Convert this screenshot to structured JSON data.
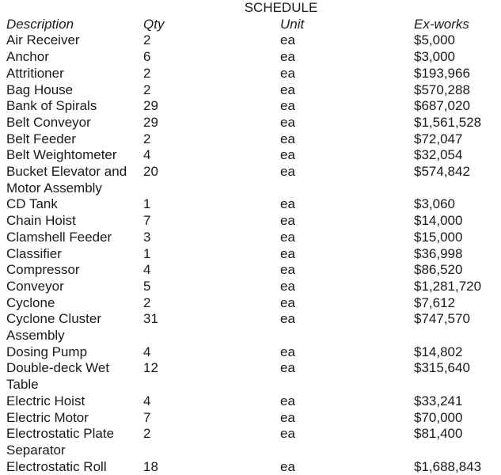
{
  "title": "SCHEDULE",
  "headers": {
    "description": "Description",
    "qty": "Qty",
    "unit": "Unit",
    "exworks": "Ex-works"
  },
  "rows": [
    {
      "description": "Air Receiver",
      "qty": "2",
      "unit": "ea",
      "exworks": "$5,000"
    },
    {
      "description": "Anchor",
      "qty": "6",
      "unit": "ea",
      "exworks": "$3,000"
    },
    {
      "description": "Attritioner",
      "qty": "2",
      "unit": "ea",
      "exworks": "$193,966"
    },
    {
      "description": "Bag House",
      "qty": "2",
      "unit": "ea",
      "exworks": "$570,288"
    },
    {
      "description": "Bank of Spirals",
      "qty": "29",
      "unit": "ea",
      "exworks": "$687,020"
    },
    {
      "description": "Belt Conveyor",
      "qty": "29",
      "unit": "ea",
      "exworks": "$1,561,528"
    },
    {
      "description": "Belt Feeder",
      "qty": "2",
      "unit": "ea",
      "exworks": "$72,047"
    },
    {
      "description": "Belt Weightometer",
      "qty": "4",
      "unit": "ea",
      "exworks": "$32,054"
    },
    {
      "description": "Bucket Elevator and Motor Assembly",
      "qty": "20",
      "unit": "ea",
      "exworks": "$574,842"
    },
    {
      "description": "CD Tank",
      "qty": "1",
      "unit": "ea",
      "exworks": "$3,060"
    },
    {
      "description": "Chain Hoist",
      "qty": "7",
      "unit": "ea",
      "exworks": "$14,000"
    },
    {
      "description": "Clamshell Feeder",
      "qty": "3",
      "unit": "ea",
      "exworks": "$15,000"
    },
    {
      "description": "Classifier",
      "qty": "1",
      "unit": "ea",
      "exworks": "$36,998"
    },
    {
      "description": "Compressor",
      "qty": "4",
      "unit": "ea",
      "exworks": "$86,520"
    },
    {
      "description": "Conveyor",
      "qty": "5",
      "unit": "ea",
      "exworks": "$1,281,720"
    },
    {
      "description": "Cyclone",
      "qty": "2",
      "unit": "ea",
      "exworks": "$7,612"
    },
    {
      "description": "Cyclone Cluster Assembly",
      "qty": "31",
      "unit": "ea",
      "exworks": "$747,570"
    },
    {
      "description": "Dosing Pump",
      "qty": "4",
      "unit": "ea",
      "exworks": "$14,802"
    },
    {
      "description": "Double-deck Wet Table",
      "qty": "12",
      "unit": "ea",
      "exworks": "$315,640"
    },
    {
      "description": "Electric Hoist",
      "qty": "4",
      "unit": "ea",
      "exworks": "$33,241"
    },
    {
      "description": "Electric Motor",
      "qty": "7",
      "unit": "ea",
      "exworks": "$70,000"
    },
    {
      "description": "Electrostatic Plate Separator",
      "qty": "2",
      "unit": "ea",
      "exworks": "$81,400"
    },
    {
      "description": "Electrostatic Roll",
      "qty": "18",
      "unit": "ea",
      "exworks": "$1,688,843"
    }
  ]
}
